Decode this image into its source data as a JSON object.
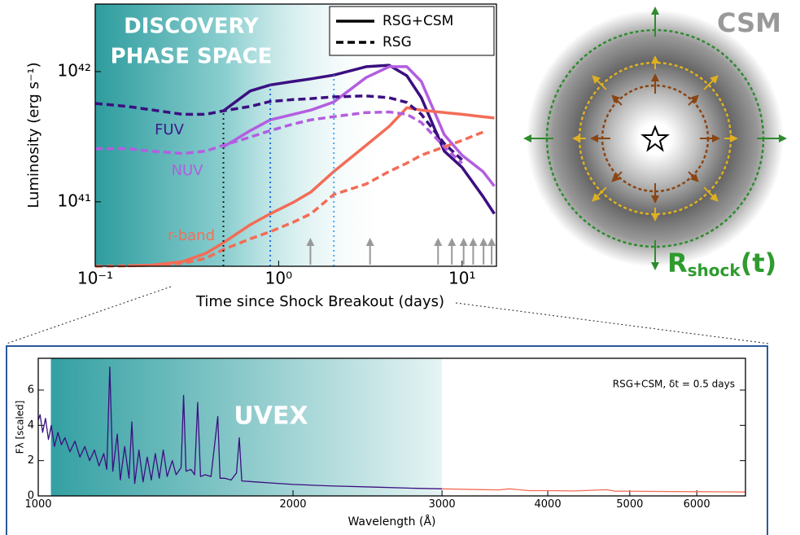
{
  "chart_data": [
    {
      "type": "line",
      "log_x": true,
      "log_y": true,
      "xlabel": "Time since Shock Breakout (days)",
      "ylabel": "Luminosity (erg s⁻¹)",
      "title_lines": [
        "DISCOVERY",
        "PHASE SPACE"
      ],
      "xlim": [
        0.1,
        15.4
      ],
      "ylim": [
        3.2e+40,
        3.3e+42
      ],
      "xticks": [
        {
          "value": 0.1,
          "label": "10⁻¹"
        },
        {
          "value": 1,
          "label": "10⁰"
        },
        {
          "value": 10,
          "label": "10¹"
        }
      ],
      "yticks": [
        {
          "value": 1e+41,
          "label": "10⁴¹"
        },
        {
          "value": 1e+42,
          "label": "10⁴²"
        }
      ],
      "legend": [
        {
          "label": "RSG+CSM",
          "dash": false
        },
        {
          "label": "RSG",
          "dash": true
        }
      ],
      "annotations": [
        {
          "text": "FUV",
          "color": "#3b1a8a"
        },
        {
          "text": "NUV",
          "color": "#b060e0"
        },
        {
          "text": "r-band",
          "color": "#f07058"
        }
      ],
      "x": [
        0.1,
        0.15,
        0.2,
        0.3,
        0.4,
        0.5,
        0.7,
        0.9,
        1.2,
        1.5,
        2,
        3,
        4,
        5,
        6,
        8,
        10,
        13,
        15
      ],
      "series": [
        {
          "color": "#3b0f80",
          "dash": false,
          "values": [
            null,
            null,
            null,
            null,
            null,
            5e+41,
            7.1e+41,
            7.9e+41,
            8.4e+41,
            8.8e+41,
            9.4e+41,
            1.09e+42,
            1.12e+42,
            9.3e+41,
            6.3e+41,
            2.45e+41,
            1.84e+41,
            1.1e+41,
            8.1e+40
          ]
        },
        {
          "color": "#b35ee0",
          "dash": false,
          "values": [
            null,
            null,
            null,
            null,
            null,
            2.64e+41,
            3.52e+41,
            4.26e+41,
            4.7e+41,
            5.06e+41,
            5.85e+41,
            9e+41,
            1.09e+42,
            1.09e+42,
            8.4e+41,
            3.28e+41,
            2.28e+41,
            1.71e+41,
            1.32e+41
          ]
        },
        {
          "color": "#f36c57",
          "dash": false,
          "values": [
            null,
            3.23e+40,
            3.26e+40,
            3.48e+40,
            4.02e+40,
            4.85e+40,
            6.67e+40,
            8.1e+40,
            9.9e+40,
            1.19e+41,
            1.71e+41,
            2.72e+41,
            3.79e+41,
            5.28e+41,
            5.06e+41,
            4.85e+41,
            4.7e+41,
            4.5e+41,
            4.4e+41
          ]
        },
        {
          "color": "#3b0f80",
          "dash": true,
          "values": [
            5.7e+41,
            5.4e+41,
            5.1e+41,
            4.7e+41,
            4.7e+41,
            5e+41,
            5.4e+41,
            5.9e+41,
            6.1e+41,
            6.2e+41,
            6.4e+41,
            6.5e+41,
            6.3e+41,
            5.8e+41,
            4.7e+41,
            2.8e+41,
            2.1e+41,
            null,
            null
          ]
        },
        {
          "color": "#b35ee0",
          "dash": true,
          "values": [
            2.56e+41,
            2.56e+41,
            2.45e+41,
            2.35e+41,
            2.45e+41,
            2.72e+41,
            3.14e+41,
            3.52e+41,
            3.96e+41,
            4.26e+41,
            4.51e+41,
            4.85e+41,
            4.9e+41,
            4.7e+41,
            4.07e+41,
            2.64e+41,
            1.98e+41,
            null,
            null
          ]
        },
        {
          "color": "#f36c57",
          "dash": true,
          "values": [
            3.2e+40,
            3.23e+40,
            3.26e+40,
            3.37e+40,
            3.68e+40,
            4.3e+40,
            5.2e+40,
            5.9e+40,
            6.97e+40,
            8.1e+40,
            1.14e+41,
            1.37e+41,
            1.71e+41,
            1.98e+41,
            2.28e+41,
            2.64e+41,
            2.96e+41,
            3.43e+41,
            null
          ]
        }
      ],
      "vlines": [
        {
          "x": 0.5,
          "color": "#222222"
        },
        {
          "x": 0.9,
          "color": "#1f6fe0"
        },
        {
          "x": 2,
          "color": "#4aa8f0"
        }
      ],
      "arrows_x": [
        1.49,
        3.15,
        7.4,
        8.8,
        10.2,
        11.5,
        13.1,
        14.5
      ]
    },
    {
      "type": "line",
      "log_x": true,
      "xlabel": "Wavelength (Å)",
      "ylabel": "Fλ [scaled]",
      "annotation": "RSG+CSM, δt = 0.5 days",
      "region_label": "UVEX",
      "region": [
        1035,
        3000
      ],
      "xlim": [
        1000,
        6850
      ],
      "ylim": [
        0,
        7.8
      ],
      "xticks": [
        1000,
        2000,
        3000,
        4000,
        5000,
        6000
      ],
      "yticks": [
        0,
        2,
        4,
        6
      ],
      "series": [
        {
          "color": "#3b0f80",
          "x": [
            1000,
            1005,
            1012,
            1020,
            1028,
            1036,
            1045,
            1055,
            1065,
            1075,
            1090,
            1105,
            1120,
            1135,
            1150,
            1165,
            1180,
            1195,
            1205,
            1215,
            1225,
            1240,
            1250,
            1265,
            1280,
            1290,
            1300,
            1315,
            1330,
            1345,
            1360,
            1375,
            1390,
            1405,
            1420,
            1440,
            1455,
            1475,
            1485,
            1495,
            1515,
            1530,
            1543,
            1555,
            1575,
            1600,
            1630,
            1640,
            1660,
            1690,
            1715,
            1728,
            1740,
            1800,
            1900,
            2000,
            2200,
            2500,
            2800,
            3000
          ],
          "values": [
            4.3,
            4.6,
            3.6,
            4.4,
            3.2,
            4.0,
            2.8,
            3.6,
            2.9,
            3.3,
            2.5,
            3.1,
            2.2,
            2.8,
            2.0,
            2.6,
            1.7,
            2.4,
            1.5,
            7.3,
            1.4,
            3.5,
            0.9,
            2.8,
            1.0,
            4.2,
            0.7,
            2.6,
            0.8,
            2.2,
            0.9,
            2.4,
            1.0,
            2.6,
            1.1,
            2.0,
            1.2,
            1.6,
            5.7,
            1.4,
            1.5,
            1.2,
            5.3,
            1.1,
            1.2,
            1.1,
            4.5,
            1.0,
            1.0,
            0.9,
            1.3,
            3.3,
            0.85,
            0.8,
            0.72,
            0.65,
            0.57,
            0.5,
            0.43,
            0.4
          ]
        },
        {
          "color": "#f36c57",
          "x": [
            3000,
            3300,
            3500,
            3600,
            3800,
            4000,
            4300,
            4700,
            4800,
            5200,
            5600,
            6000,
            6400,
            6850
          ],
          "values": [
            0.4,
            0.36,
            0.34,
            0.4,
            0.3,
            0.3,
            0.28,
            0.35,
            0.27,
            0.26,
            0.25,
            0.24,
            0.23,
            0.22
          ]
        }
      ]
    }
  ],
  "diagram": {
    "csm_label": "CSM",
    "radius_label": {
      "main": "R",
      "sub": "shock",
      "tail": "(t)"
    }
  }
}
